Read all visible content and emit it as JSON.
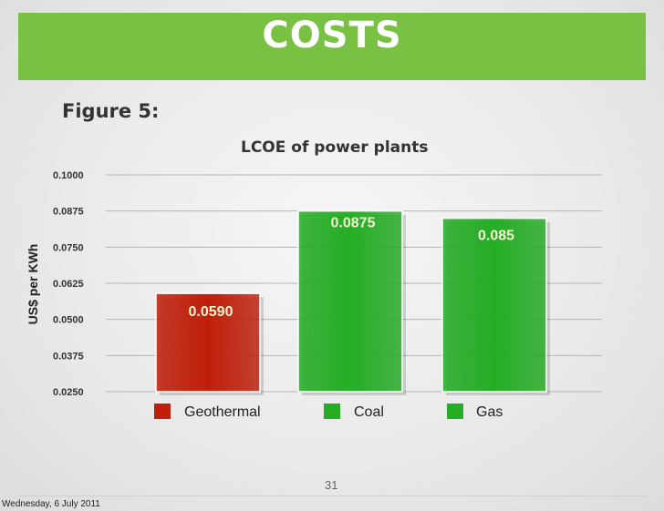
{
  "header": {
    "title": "COSTS"
  },
  "figure_label": "Figure 5:",
  "footer": {
    "slide_number": "31",
    "date": "Wednesday, 6 July 2011"
  },
  "chart_data": {
    "type": "bar",
    "title": "LCOE of power plants",
    "xlabel": "",
    "ylabel": "US$ per KWh",
    "categories": [
      "Geothermal",
      "Coal",
      "Gas"
    ],
    "values": [
      0.059,
      0.0875,
      0.085
    ],
    "value_labels": [
      "0.0590",
      "0.0875",
      "0.085"
    ],
    "colors": [
      "#c01f0a",
      "#25ad25",
      "#25ad25"
    ],
    "ylim": [
      0.025,
      0.1
    ],
    "yticks": [
      0.1,
      0.0875,
      0.075,
      0.0625,
      0.05,
      0.0375,
      0.025
    ],
    "ytick_labels": [
      "0.1000",
      "0.0875",
      "0.0750",
      "0.0625",
      "0.0500",
      "0.0375",
      "0.0250"
    ],
    "grid": true,
    "legend_position": "bottom"
  }
}
